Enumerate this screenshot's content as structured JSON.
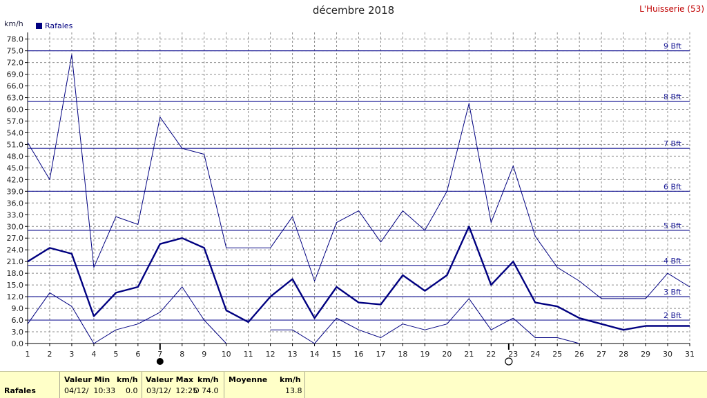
{
  "title": "décembre 2018",
  "station": "L'Huisserie (53)",
  "unit_label": "km/h",
  "legend": {
    "label": "Rafales",
    "color": "#000080"
  },
  "beaufort": [
    {
      "label": "2 Bft",
      "value": 6
    },
    {
      "label": "3 Bft",
      "value": 12
    },
    {
      "label": "4 Bft",
      "value": 20
    },
    {
      "label": "5 Bft",
      "value": 29
    },
    {
      "label": "6 Bft",
      "value": 39
    },
    {
      "label": "7 Bft",
      "value": 50
    },
    {
      "label": "8 Bft",
      "value": 62
    },
    {
      "label": "9 Bft",
      "value": 75
    }
  ],
  "chart_data": {
    "type": "line",
    "title": "décembre 2018",
    "ylabel": "km/h",
    "ylim": [
      0,
      79
    ],
    "yticks": [
      "0.0",
      "3.0",
      "6.0",
      "9.0",
      "12.0",
      "15.0",
      "18.0",
      "21.0",
      "24.0",
      "27.0",
      "30.0",
      "33.0",
      "36.0",
      "39.0",
      "42.0",
      "45.0",
      "48.0",
      "51.0",
      "54.0",
      "57.0",
      "60.0",
      "63.0",
      "66.0",
      "69.0",
      "72.0",
      "75.0",
      "78.0"
    ],
    "x": [
      1,
      2,
      3,
      4,
      5,
      6,
      7,
      8,
      9,
      10,
      11,
      12,
      13,
      14,
      15,
      16,
      17,
      18,
      19,
      20,
      21,
      22,
      23,
      24,
      25,
      26,
      27,
      28,
      29,
      30,
      31
    ],
    "grid": true,
    "series": [
      {
        "role": "max",
        "values": [
          51.5,
          42,
          74,
          19.5,
          32.5,
          30.5,
          58,
          50,
          48.5,
          24.5,
          24.5,
          24.5,
          32.5,
          16,
          31,
          34,
          26,
          34,
          29,
          39,
          61.5,
          31,
          45.5,
          27.5,
          19.5,
          16,
          11.5,
          11.5,
          11.5,
          18,
          14.5
        ]
      },
      {
        "role": "mean",
        "name": "Rafales",
        "values": [
          21,
          24.5,
          23,
          7,
          13,
          14.5,
          25.5,
          27,
          24.5,
          8.5,
          5.5,
          12,
          16.5,
          6.5,
          14.5,
          10.5,
          10,
          17.5,
          13.5,
          17.5,
          30,
          15,
          21,
          10.5,
          9.5,
          6.5,
          5,
          3.5,
          4.5,
          4.5,
          4.5
        ]
      },
      {
        "role": "min",
        "values": [
          5,
          13,
          9.5,
          0,
          3.5,
          5,
          8,
          14.5,
          6,
          0,
          null,
          3.5,
          3.5,
          0,
          6.5,
          3.5,
          1.5,
          5,
          3.5,
          5,
          11.5,
          3.5,
          6.5,
          1.5,
          1.5,
          0,
          null,
          null,
          null,
          null,
          null
        ]
      }
    ],
    "moon_phases": [
      {
        "day": 7,
        "phase": "new"
      },
      {
        "day": 22.8,
        "phase": "full"
      }
    ]
  },
  "footer": {
    "row_label": "Rafales",
    "min": {
      "header": "Valeur Min",
      "unit": "km/h",
      "datetime": "04/12/  10:33",
      "value": "0.0"
    },
    "max": {
      "header": "Valeur Max",
      "unit": "km/h",
      "datetime": "03/12/  12:25",
      "value": "74.0",
      "marker": "O"
    },
    "mean": {
      "header": "Moyenne",
      "unit": "km/h",
      "value": "13.8"
    }
  }
}
